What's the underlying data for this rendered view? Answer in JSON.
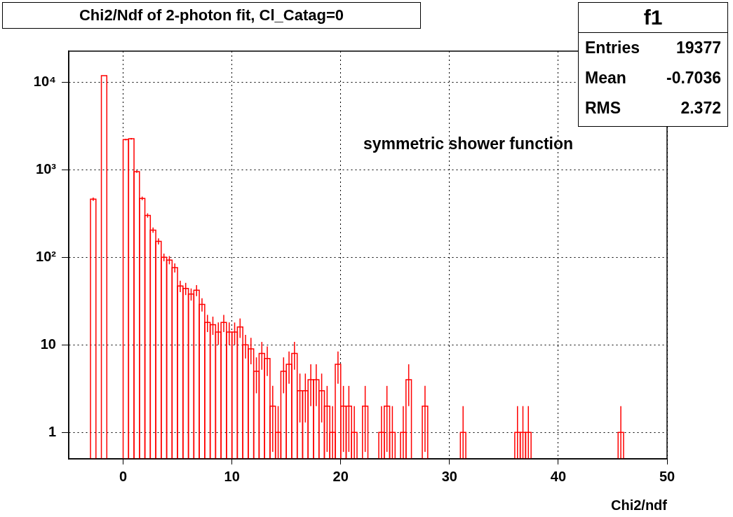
{
  "chart_data": {
    "type": "histogram",
    "title": "Chi2/Ndf of 2-photon fit, Cl_Catag=0",
    "xlabel": "Chi2/ndf",
    "annotations": [
      "symmetric shower function",
      "f1",
      "Entries",
      "19377",
      "Mean",
      "-0.7036",
      "RMS",
      "2.372"
    ],
    "color": "#ff0000",
    "log": true,
    "grid": true,
    "xlim": [
      -5,
      50
    ],
    "xticks": [
      0,
      10,
      20,
      30,
      40,
      50
    ],
    "ylim": [
      0.5,
      22500
    ],
    "yticks": [
      1,
      10,
      {
        "value": 100,
        "label": "10²"
      },
      {
        "value": 1000,
        "label": "10³"
      },
      {
        "value": 10000,
        "label": "10⁴"
      }
    ],
    "bins": [
      -5,
      -4.5,
      -4,
      -3.5,
      -3,
      -2.5,
      -2,
      -1.5,
      -1,
      -0.5,
      0,
      0.5,
      1,
      1.5,
      2,
      2.5,
      3,
      3.5,
      4,
      4.5,
      5,
      5.5,
      6,
      6.5,
      7,
      7.5,
      8,
      8.5,
      9,
      9.5,
      10,
      10.5,
      11,
      11.5,
      12,
      12.5,
      13,
      13.5,
      14,
      14.5,
      15,
      15.5,
      16,
      16.5,
      17,
      17.5,
      18,
      18.5,
      19,
      19.5,
      20,
      20.5,
      21,
      21.5,
      22,
      22.5,
      23,
      23.5,
      24,
      24.5,
      25,
      25.5,
      26,
      26.5,
      27,
      27.5,
      28,
      28.5,
      29,
      29.5,
      30,
      30.5,
      31,
      31.5,
      32,
      32.5,
      33,
      33.5,
      34,
      34.5,
      35,
      35.5,
      36,
      36.5,
      37,
      37.5,
      38,
      38.5,
      39,
      39.5,
      40,
      40.5,
      41,
      41.5,
      42,
      42.5,
      43,
      43.5,
      44,
      44.5,
      45,
      45.5,
      46,
      46.5,
      47,
      47.5,
      48,
      48.5,
      49,
      49.5,
      50
    ],
    "values": [
      null,
      null,
      null,
      null,
      460,
      null,
      11800,
      null,
      null,
      null,
      2200,
      2250,
      950,
      470,
      300,
      204,
      152,
      100,
      93,
      76,
      47,
      44,
      38,
      42,
      29,
      18,
      17,
      14,
      18,
      14,
      14,
      16,
      10,
      9,
      5,
      8,
      7,
      2,
      1,
      5,
      6,
      8,
      3,
      3,
      4,
      4,
      3,
      2,
      1,
      6,
      2,
      2,
      1,
      null,
      2,
      null,
      null,
      1,
      2,
      1,
      null,
      1,
      4,
      null,
      null,
      2,
      null,
      null,
      null,
      null,
      null,
      null,
      1,
      null,
      null,
      null,
      null,
      null,
      null,
      null,
      null,
      null,
      1,
      1,
      1,
      null,
      null,
      null,
      null,
      null,
      null,
      null,
      null,
      null,
      null,
      null,
      null,
      null,
      null,
      null,
      null,
      1,
      null,
      null,
      null,
      null,
      null,
      null,
      null,
      null
    ],
    "errors": [
      null,
      null,
      null,
      null,
      21,
      null,
      null,
      null,
      null,
      null,
      47,
      47,
      31,
      22,
      17,
      14,
      12,
      10,
      10,
      9,
      7,
      7,
      6,
      6,
      5,
      4,
      4,
      4,
      4,
      4,
      4,
      4,
      3,
      3,
      2.2,
      2.8,
      2.6,
      1.4,
      [
        0.5,
        2
      ],
      2.2,
      2.4,
      2.8,
      1.7,
      1.7,
      2,
      2,
      1.7,
      1.4,
      [
        0.5,
        2
      ],
      2.4,
      1.4,
      1.4,
      [
        0.5,
        2
      ],
      null,
      1.4,
      null,
      null,
      [
        0.5,
        2
      ],
      1.4,
      [
        0.5,
        2
      ],
      null,
      [
        0.5,
        2
      ],
      2,
      null,
      null,
      1.4,
      null,
      null,
      null,
      null,
      null,
      null,
      [
        0.5,
        2
      ],
      null,
      null,
      null,
      null,
      null,
      null,
      null,
      null,
      null,
      [
        0.5,
        2
      ],
      [
        0.5,
        2
      ],
      [
        0.5,
        2
      ],
      null,
      null,
      null,
      null,
      null,
      null,
      null,
      null,
      null,
      null,
      null,
      null,
      null,
      null,
      null,
      null,
      [
        0.5,
        2
      ],
      null,
      null,
      null,
      null,
      null,
      null,
      null,
      null
    ]
  }
}
